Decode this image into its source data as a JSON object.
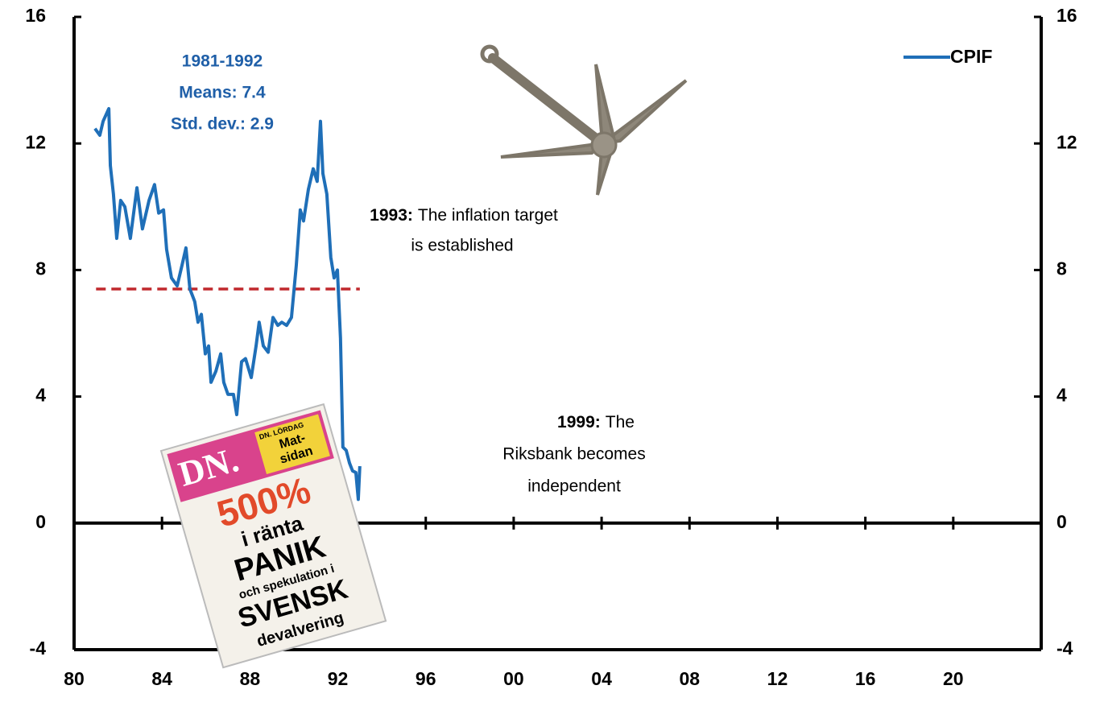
{
  "chart_data": {
    "type": "line",
    "x": [
      1980.95,
      1981.17,
      1981.32,
      1981.58,
      1981.65,
      1981.79,
      1981.94,
      1982.12,
      1982.31,
      1982.56,
      1982.86,
      1983.11,
      1983.41,
      1983.66,
      1983.85,
      1984.07,
      1984.21,
      1984.43,
      1984.69,
      1984.91,
      1985.09,
      1985.27,
      1985.49,
      1985.64,
      1985.79,
      1985.97,
      1986.12,
      1986.23,
      1986.45,
      1986.67,
      1986.81,
      1987.0,
      1987.25,
      1987.4,
      1987.62,
      1987.8,
      1988.06,
      1988.28,
      1988.42,
      1988.61,
      1988.83,
      1989.05,
      1989.27,
      1989.45,
      1989.67,
      1989.89,
      1990.11,
      1990.29,
      1990.44,
      1990.66,
      1990.88,
      1991.06,
      1991.21,
      1991.32,
      1991.5,
      1991.68,
      1991.83,
      1991.98,
      1992.12,
      1992.23,
      1992.38,
      1992.53,
      1992.67,
      1992.82,
      1992.93,
      1993.0
    ],
    "series": [
      {
        "name": "CPIF",
        "color": "#1f6fb8",
        "values": [
          12.47,
          12.26,
          12.7,
          13.1,
          11.3,
          10.4,
          9.0,
          10.2,
          10.0,
          9.0,
          10.6,
          9.3,
          10.2,
          10.7,
          9.8,
          9.9,
          8.65,
          7.75,
          7.5,
          8.15,
          8.7,
          7.4,
          7.0,
          6.35,
          6.6,
          5.35,
          5.6,
          4.45,
          4.8,
          5.35,
          4.45,
          4.07,
          4.07,
          3.43,
          5.1,
          5.2,
          4.6,
          5.6,
          6.35,
          5.6,
          5.4,
          6.5,
          6.25,
          6.35,
          6.25,
          6.5,
          8.15,
          9.9,
          9.55,
          10.55,
          11.2,
          10.8,
          12.7,
          11.05,
          10.4,
          8.4,
          7.75,
          8.0,
          5.85,
          2.4,
          2.3,
          1.9,
          1.65,
          1.6,
          0.75,
          1.8
        ]
      }
    ],
    "mean_line": {
      "y": 7.4,
      "x": [
        1981,
        1993
      ],
      "color": "#c0282d"
    },
    "xlim": [
      1980,
      2024
    ],
    "xticks": [
      {
        "value": 1980,
        "label": "80"
      },
      {
        "value": 1984,
        "label": "84"
      },
      {
        "value": 1988,
        "label": "88"
      },
      {
        "value": 1992,
        "label": "92"
      },
      {
        "value": 1996,
        "label": "96"
      },
      {
        "value": 2000,
        "label": "00"
      },
      {
        "value": 2004,
        "label": "04"
      },
      {
        "value": 2008,
        "label": "08"
      },
      {
        "value": 2012,
        "label": "12"
      },
      {
        "value": 2016,
        "label": "16"
      },
      {
        "value": 2020,
        "label": "20"
      }
    ],
    "ylim": [
      -4,
      16
    ],
    "yticks": [
      -4,
      0,
      4,
      8,
      12,
      16
    ],
    "y2lim": [
      -4,
      16
    ],
    "y2ticks": [
      -4,
      0,
      4,
      8,
      12,
      16
    ],
    "grid": false,
    "legend": "top-right",
    "stats": [
      "1981-1992",
      "Means: 7.4",
      "Std. dev.: 2.9"
    ],
    "annotations": [
      {
        "label": "1993:",
        "text": [
          "The inflation target",
          "is established"
        ]
      },
      {
        "label": "1999:",
        "text": [
          "The",
          "Riksbank becomes",
          "independent"
        ]
      }
    ],
    "newspaper": [
      "DN.",
      "DN. LÖRDAG",
      "Mat-",
      "sidan",
      "500%",
      "i ränta",
      "PANIK",
      "och spekulation i",
      "SVENSK",
      "devalvering"
    ]
  }
}
